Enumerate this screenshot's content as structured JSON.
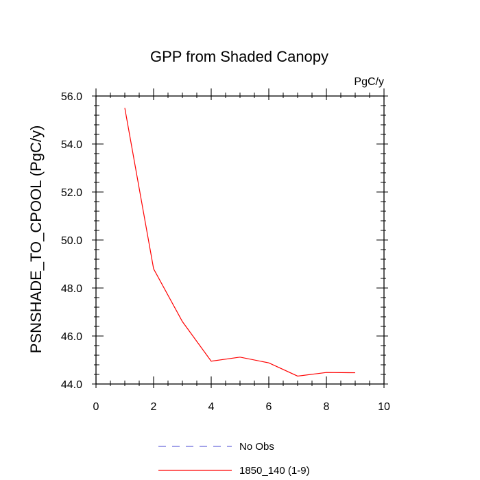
{
  "chart_data": {
    "type": "line",
    "title": "GPP from Shaded Canopy",
    "units_label": "PgC/y",
    "ylabel": "PSNSHADE_TO_CPOOL  (PgC/y)",
    "xlabel": "",
    "xlim": [
      0,
      10
    ],
    "ylim": [
      44.0,
      56.0
    ],
    "x_ticks": [
      0,
      2,
      4,
      6,
      8,
      10
    ],
    "x_tick_labels": [
      "0",
      "2",
      "4",
      "6",
      "8",
      "10"
    ],
    "y_ticks": [
      44.0,
      46.0,
      48.0,
      50.0,
      52.0,
      54.0,
      56.0
    ],
    "y_tick_labels": [
      "44.0",
      "46.0",
      "48.0",
      "50.0",
      "52.0",
      "54.0",
      "56.0"
    ],
    "grid": false,
    "legend_position": "bottom",
    "series": [
      {
        "name": "1850_140 (1-9)",
        "color": "#ff0000",
        "style": "solid",
        "x": [
          1,
          2,
          3,
          4,
          5,
          6,
          7,
          8,
          9
        ],
        "y": [
          55.5,
          48.8,
          46.6,
          44.95,
          45.12,
          44.88,
          44.33,
          44.48,
          44.47
        ]
      }
    ],
    "legend": [
      {
        "label": "No Obs",
        "color": "#6b6bdc",
        "style": "dashed"
      },
      {
        "label": "1850_140 (1-9)",
        "color": "#ff0000",
        "style": "solid"
      }
    ]
  }
}
